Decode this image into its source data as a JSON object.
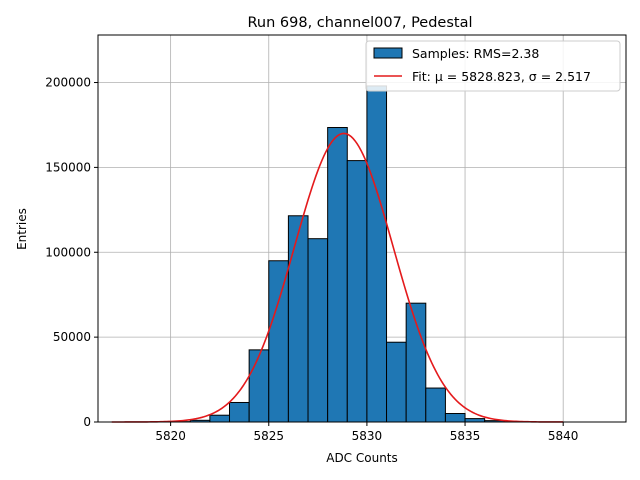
{
  "chart_data": {
    "type": "bar",
    "title": "Run 698, channel007, Pedestal",
    "xlabel": "ADC Counts",
    "ylabel": "Entries",
    "xlim": [
      5816.3,
      5843.2
    ],
    "ylim": [
      0,
      228000
    ],
    "grid": true,
    "legend_position": "top-right",
    "x_ticks": [
      5820,
      5825,
      5830,
      5835,
      5840
    ],
    "y_ticks": [
      0,
      50000,
      100000,
      150000,
      200000
    ],
    "histogram": {
      "name": "Samples: RMS=2.38",
      "color": "#1f77b4",
      "bin_width": 1,
      "bin_left_edges": [
        5820,
        5821,
        5822,
        5823,
        5824,
        5825,
        5826,
        5827,
        5828,
        5829,
        5830,
        5831,
        5832,
        5833,
        5834,
        5835,
        5836,
        5837
      ],
      "counts": [
        200,
        1000,
        4000,
        11500,
        42500,
        95000,
        121500,
        108000,
        173500,
        154000,
        198000,
        47000,
        70000,
        20000,
        5000,
        2000,
        800,
        200
      ]
    },
    "fit": {
      "name": "Fit: μ = 5828.823, σ = 2.517",
      "color": "#e41a1c",
      "mu": 5828.823,
      "sigma": 2.517,
      "amplitude": 170000,
      "x_range": [
        5817,
        5840
      ]
    }
  }
}
